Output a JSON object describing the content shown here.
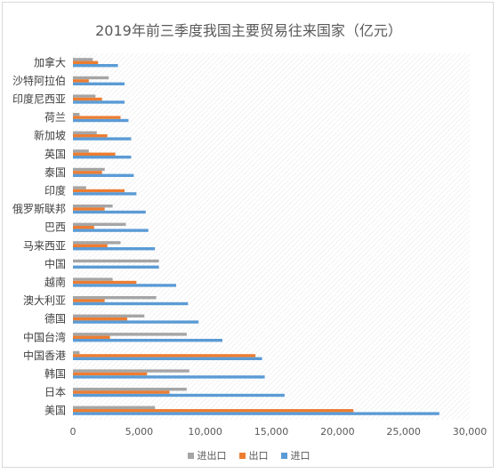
{
  "chart_data": {
    "type": "bar",
    "orientation": "horizontal",
    "title": "2019年前三季度我国主要贸易往来国家（亿元）",
    "categories": [
      "加拿大",
      "沙特阿拉伯",
      "印度尼西亚",
      "荷兰",
      "新加坡",
      "英国",
      "泰国",
      "印度",
      "俄罗斯联邦",
      "巴西",
      "马来西亚",
      "中国",
      "越南",
      "澳大利亚",
      "德国",
      "中国台湾",
      "中国香港",
      "韩国",
      "日本",
      "美国"
    ],
    "series": [
      {
        "name": "进出口",
        "color": "#a5a5a5",
        "values": [
          1500,
          2700,
          1700,
          500,
          1800,
          1200,
          2400,
          1000,
          3000,
          4000,
          3600,
          6500,
          3000,
          6300,
          5400,
          8600,
          500,
          8800,
          8600,
          6200
        ]
      },
      {
        "name": "出口",
        "color": "#ed7d31",
        "values": [
          1900,
          1200,
          2200,
          3600,
          2600,
          3200,
          2200,
          3900,
          2400,
          1600,
          2600,
          0,
          4800,
          2400,
          4100,
          2800,
          13800,
          5600,
          7300,
          21200
        ]
      },
      {
        "name": "进口",
        "color": "#5b9bd5",
        "values": [
          3400,
          3900,
          3900,
          4200,
          4400,
          4400,
          4600,
          4800,
          5500,
          5700,
          6200,
          6500,
          7800,
          8700,
          9500,
          11300,
          14300,
          14500,
          16000,
          27700
        ]
      }
    ],
    "xlim": [
      0,
      30000
    ],
    "xticks": [
      "0",
      "5,000",
      "10,000",
      "15,000",
      "20,000",
      "25,000",
      "30,000"
    ],
    "legend_position": "bottom",
    "grid": false
  },
  "legend": {
    "items": [
      {
        "label": "进出口",
        "color": "#a5a5a5"
      },
      {
        "label": "出口",
        "color": "#ed7d31"
      },
      {
        "label": "进口",
        "color": "#5b9bd5"
      }
    ]
  }
}
